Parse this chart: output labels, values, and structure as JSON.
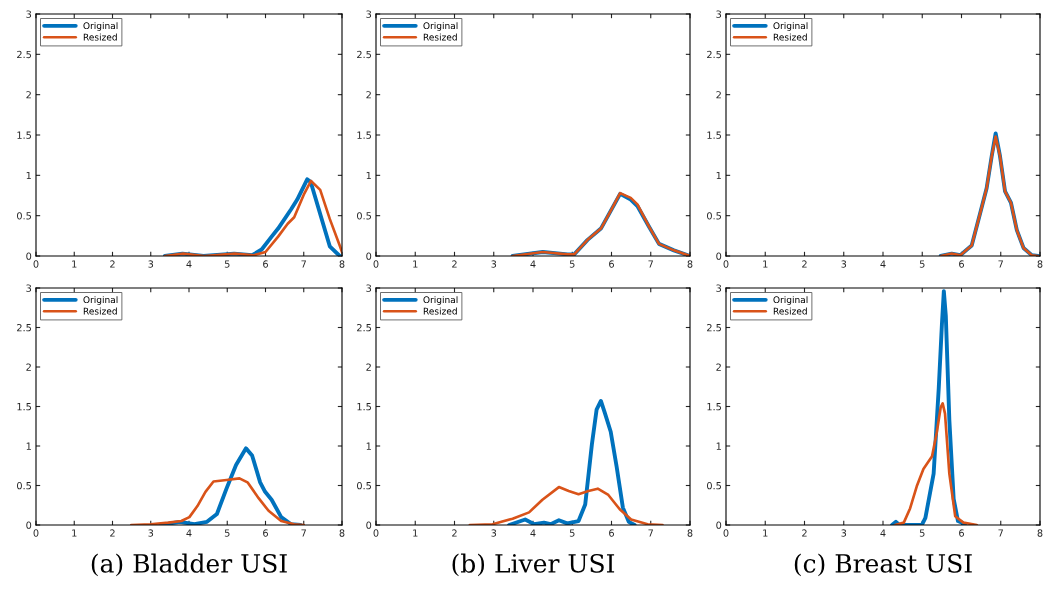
{
  "chart_data": [
    {
      "type": "line",
      "xlim": [
        0,
        8
      ],
      "ylim": [
        0,
        3
      ],
      "xticks": [
        0,
        1,
        2,
        3,
        4,
        5,
        6,
        7,
        8
      ],
      "yticks": [
        0,
        0.5,
        1,
        1.5,
        2,
        2.5,
        3
      ],
      "legend": "top left",
      "series": [
        {
          "name": "Original",
          "color": "#0072bd",
          "x": [
            3.37,
            3.83,
            4.38,
            5.18,
            5.65,
            5.9,
            6.16,
            6.33,
            6.67,
            6.83,
            7.09,
            7.18,
            7.43,
            7.68,
            7.94
          ],
          "values": [
            0,
            0.03,
            0,
            0.03,
            0.01,
            0.08,
            0.24,
            0.34,
            0.58,
            0.7,
            0.95,
            0.92,
            0.52,
            0.12,
            0
          ]
        },
        {
          "name": "Resized",
          "color": "#d95319",
          "x": [
            3.37,
            3.85,
            4.4,
            5.2,
            5.7,
            6.0,
            6.33,
            6.58,
            6.75,
            7.0,
            7.19,
            7.43,
            7.68,
            7.94,
            8.0
          ],
          "values": [
            0,
            0.03,
            0,
            0.03,
            0.01,
            0.05,
            0.24,
            0.4,
            0.48,
            0.76,
            0.93,
            0.82,
            0.46,
            0.13,
            0.05
          ]
        }
      ]
    },
    {
      "type": "line",
      "xlim": [
        0,
        8
      ],
      "ylim": [
        0,
        3
      ],
      "xticks": [
        0,
        1,
        2,
        3,
        4,
        5,
        6,
        7,
        8
      ],
      "yticks": [
        0,
        0.5,
        1,
        1.5,
        2,
        2.5,
        3
      ],
      "legend": "top left",
      "series": [
        {
          "name": "Original",
          "color": "#0072bd",
          "x": [
            3.48,
            4.25,
            4.88,
            5.05,
            5.39,
            5.73,
            5.98,
            6.22,
            6.49,
            6.66,
            6.96,
            7.21,
            7.59,
            8.0
          ],
          "values": [
            0,
            0.05,
            0.02,
            0.02,
            0.2,
            0.34,
            0.56,
            0.77,
            0.7,
            0.62,
            0.36,
            0.15,
            0.07,
            0
          ]
        },
        {
          "name": "Resized",
          "color": "#d95319",
          "x": [
            3.48,
            4.25,
            4.88,
            5.05,
            5.39,
            5.73,
            5.98,
            6.22,
            6.49,
            6.66,
            6.96,
            7.21,
            7.59,
            8.0
          ],
          "values": [
            0,
            0.05,
            0.02,
            0.02,
            0.2,
            0.34,
            0.56,
            0.78,
            0.72,
            0.64,
            0.36,
            0.15,
            0.07,
            0
          ]
        }
      ]
    },
    {
      "type": "line",
      "xlim": [
        0,
        8
      ],
      "ylim": [
        0,
        3
      ],
      "xticks": [
        0,
        1,
        2,
        3,
        4,
        5,
        6,
        7,
        8
      ],
      "yticks": [
        0,
        0.5,
        1,
        1.5,
        2,
        2.5,
        3
      ],
      "legend": "top left",
      "series": [
        {
          "name": "Original",
          "color": "#0072bd",
          "x": [
            5.47,
            5.75,
            5.97,
            6.14,
            6.26,
            6.47,
            6.64,
            6.77,
            6.87,
            6.98,
            7.11,
            7.26,
            7.41,
            7.58,
            7.79,
            7.95
          ],
          "values": [
            0,
            0.03,
            0.01,
            0.08,
            0.13,
            0.52,
            0.84,
            1.24,
            1.52,
            1.24,
            0.8,
            0.66,
            0.32,
            0.1,
            0.01,
            0
          ]
        },
        {
          "name": "Resized",
          "color": "#d95319",
          "x": [
            5.47,
            5.75,
            5.97,
            6.14,
            6.26,
            6.47,
            6.64,
            6.77,
            6.87,
            6.98,
            7.11,
            7.26,
            7.41,
            7.58,
            7.79,
            7.95
          ],
          "values": [
            0,
            0.03,
            0.01,
            0.08,
            0.13,
            0.52,
            0.84,
            1.24,
            1.48,
            1.24,
            0.8,
            0.66,
            0.32,
            0.1,
            0.01,
            0
          ]
        }
      ]
    },
    {
      "type": "line",
      "xlim": [
        0,
        8
      ],
      "ylim": [
        0,
        3
      ],
      "xticks": [
        0,
        1,
        2,
        3,
        4,
        5,
        6,
        7,
        8
      ],
      "yticks": [
        0,
        0.5,
        1,
        1.5,
        2,
        2.5,
        3
      ],
      "legend": "top left",
      "annotations": [
        "(a) Bladder USI"
      ],
      "series": [
        {
          "name": "Original",
          "color": "#0072bd",
          "x": [
            3.25,
            3.76,
            4.14,
            4.47,
            4.73,
            4.98,
            5.23,
            5.49,
            5.65,
            5.86,
            5.99,
            6.16,
            6.41,
            6.67,
            6.92
          ],
          "values": [
            0,
            0.04,
            0.01,
            0.04,
            0.14,
            0.46,
            0.76,
            0.97,
            0.88,
            0.54,
            0.42,
            0.32,
            0.1,
            0.01,
            0
          ]
        },
        {
          "name": "Resized",
          "color": "#d95319",
          "x": [
            2.49,
            3.0,
            3.46,
            3.8,
            4.01,
            4.22,
            4.43,
            4.64,
            4.98,
            5.32,
            5.53,
            5.82,
            6.08,
            6.41,
            6.75,
            7.0
          ],
          "values": [
            0,
            0.01,
            0.03,
            0.05,
            0.1,
            0.24,
            0.42,
            0.55,
            0.57,
            0.59,
            0.54,
            0.34,
            0.18,
            0.05,
            0.01,
            0
          ]
        }
      ]
    },
    {
      "type": "line",
      "xlim": [
        0,
        8
      ],
      "ylim": [
        0,
        3
      ],
      "xticks": [
        0,
        1,
        2,
        3,
        4,
        5,
        6,
        7,
        8
      ],
      "yticks": [
        0,
        0.5,
        1,
        1.5,
        2,
        2.5,
        3
      ],
      "legend": "top left",
      "annotations": [
        "(b) Liver USI"
      ],
      "series": [
        {
          "name": "Original",
          "color": "#0072bd",
          "x": [
            3.39,
            3.8,
            4.03,
            4.28,
            4.45,
            4.66,
            4.87,
            5.16,
            5.33,
            5.5,
            5.62,
            5.73,
            5.83,
            5.98,
            6.13,
            6.29,
            6.44,
            6.59
          ],
          "values": [
            0,
            0.07,
            0.01,
            0.03,
            0.01,
            0.06,
            0.02,
            0.05,
            0.26,
            1.02,
            1.46,
            1.57,
            1.42,
            1.18,
            0.74,
            0.22,
            0.04,
            0
          ]
        },
        {
          "name": "Resized",
          "color": "#d95319",
          "x": [
            2.39,
            2.97,
            3.48,
            3.9,
            4.24,
            4.66,
            4.91,
            5.16,
            5.41,
            5.65,
            5.92,
            6.21,
            6.5,
            6.92,
            7.3
          ],
          "values": [
            0,
            0.01,
            0.08,
            0.16,
            0.32,
            0.48,
            0.43,
            0.39,
            0.43,
            0.46,
            0.38,
            0.2,
            0.07,
            0.01,
            0
          ]
        }
      ]
    },
    {
      "type": "line",
      "xlim": [
        0,
        8
      ],
      "ylim": [
        0,
        3
      ],
      "xticks": [
        0,
        1,
        2,
        3,
        4,
        5,
        6,
        7,
        8
      ],
      "yticks": [
        0,
        0.5,
        1,
        1.5,
        2,
        2.5,
        3
      ],
      "legend": "top left",
      "annotations": [
        "(c) Breast USI"
      ],
      "series": [
        {
          "name": "Original",
          "color": "#0072bd",
          "x": [
            4.23,
            4.33,
            4.42,
            4.99,
            5.08,
            5.29,
            5.42,
            5.5,
            5.55,
            5.6,
            5.69,
            5.8,
            5.91,
            6.01,
            6.09
          ],
          "values": [
            0,
            0.04,
            0,
            0,
            0.09,
            0.65,
            1.73,
            2.53,
            2.96,
            2.65,
            1.33,
            0.33,
            0.05,
            0.03,
            0
          ]
        },
        {
          "name": "Resized",
          "color": "#d95319",
          "x": [
            4.31,
            4.53,
            4.69,
            4.86,
            5.03,
            5.25,
            5.37,
            5.47,
            5.52,
            5.58,
            5.69,
            5.84,
            6.05,
            6.39
          ],
          "values": [
            0,
            0.03,
            0.21,
            0.49,
            0.71,
            0.87,
            1.17,
            1.49,
            1.54,
            1.41,
            0.65,
            0.11,
            0.03,
            0
          ]
        }
      ]
    }
  ]
}
